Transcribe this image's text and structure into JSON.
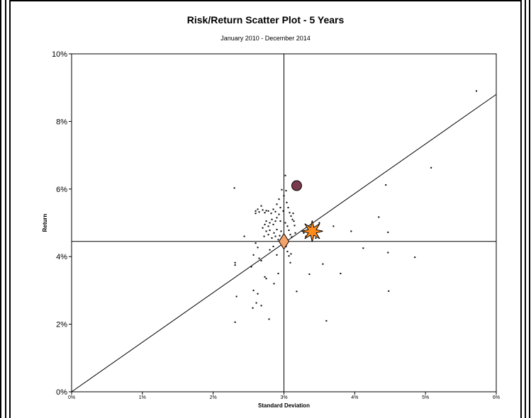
{
  "chart_data": {
    "type": "scatter",
    "title": "Risk/Return Scatter Plot - 5 Years",
    "subtitle": "January 2010 - December 2014",
    "xlabel": "Standard Deviation",
    "ylabel": "Return",
    "xlim": [
      0,
      6
    ],
    "ylim": [
      0,
      10
    ],
    "xticks": [
      "0%",
      "1%",
      "2%",
      "3%",
      "4%",
      "5%",
      "6%"
    ],
    "yticks": [
      "0%",
      "2%",
      "4%",
      "6%",
      "8%",
      "10%"
    ],
    "grid": false,
    "crosshair": {
      "x": 3.0,
      "y": 4.45
    },
    "market_line": {
      "from": [
        0,
        0
      ],
      "to": [
        6,
        8.8
      ]
    },
    "highlights": [
      {
        "marker": "circle",
        "x": 3.18,
        "y": 6.1,
        "color": "#7a3a4e"
      },
      {
        "marker": "star",
        "x": 3.4,
        "y": 4.75,
        "color": "#ff8c1a"
      },
      {
        "marker": "diamond",
        "x": 3.0,
        "y": 4.45,
        "color": "#f4a36a"
      }
    ],
    "points": [
      [
        2.3,
        6.03
      ],
      [
        2.31,
        3.82
      ],
      [
        2.31,
        3.75
      ],
      [
        2.33,
        2.82
      ],
      [
        2.31,
        2.06
      ],
      [
        2.44,
        4.6
      ],
      [
        2.54,
        3.7
      ],
      [
        2.57,
        4.05
      ],
      [
        2.57,
        3.0
      ],
      [
        2.56,
        2.48
      ],
      [
        2.61,
        2.63
      ],
      [
        2.63,
        2.9
      ],
      [
        2.68,
        2.55
      ],
      [
        2.73,
        3.4
      ],
      [
        2.75,
        3.35
      ],
      [
        2.79,
        2.15
      ],
      [
        2.6,
        4.4
      ],
      [
        2.63,
        4.27
      ],
      [
        2.65,
        3.95
      ],
      [
        2.68,
        3.88
      ],
      [
        2.6,
        5.28
      ],
      [
        2.6,
        5.35
      ],
      [
        2.63,
        5.4
      ],
      [
        2.65,
        5.32
      ],
      [
        2.68,
        5.5
      ],
      [
        2.7,
        5.38
      ],
      [
        2.73,
        5.3
      ],
      [
        2.75,
        5.36
      ],
      [
        2.78,
        5.35
      ],
      [
        2.82,
        5.28
      ],
      [
        2.85,
        5.4
      ],
      [
        2.88,
        5.33
      ],
      [
        2.7,
        4.85
      ],
      [
        2.73,
        4.95
      ],
      [
        2.75,
        5.05
      ],
      [
        2.78,
        4.9
      ],
      [
        2.8,
        5.0
      ],
      [
        2.83,
        5.1
      ],
      [
        2.85,
        4.95
      ],
      [
        2.88,
        5.05
      ],
      [
        2.9,
        5.15
      ],
      [
        2.93,
        5.25
      ],
      [
        2.95,
        5.05
      ],
      [
        2.72,
        4.6
      ],
      [
        2.75,
        4.75
      ],
      [
        2.78,
        4.65
      ],
      [
        2.8,
        4.78
      ],
      [
        2.83,
        4.55
      ],
      [
        2.86,
        4.7
      ],
      [
        2.88,
        4.6
      ],
      [
        2.9,
        4.8
      ],
      [
        2.92,
        4.5
      ],
      [
        2.94,
        4.62
      ],
      [
        2.96,
        4.75
      ],
      [
        2.98,
        4.4
      ],
      [
        2.8,
        4.2
      ],
      [
        2.85,
        4.3
      ],
      [
        2.9,
        4.05
      ],
      [
        2.92,
        3.5
      ],
      [
        2.86,
        3.2
      ],
      [
        2.9,
        5.55
      ],
      [
        2.93,
        5.7
      ],
      [
        2.95,
        5.45
      ],
      [
        2.97,
        5.98
      ],
      [
        2.99,
        5.35
      ],
      [
        3.0,
        5.8
      ],
      [
        3.02,
        6.4
      ],
      [
        3.03,
        5.95
      ],
      [
        3.04,
        5.6
      ],
      [
        3.06,
        5.45
      ],
      [
        3.08,
        5.3
      ],
      [
        3.1,
        5.2
      ],
      [
        3.12,
        5.1
      ],
      [
        3.02,
        5.0
      ],
      [
        3.05,
        4.9
      ],
      [
        3.07,
        4.78
      ],
      [
        3.09,
        4.65
      ],
      [
        3.11,
        4.58
      ],
      [
        3.03,
        4.3
      ],
      [
        3.05,
        4.15
      ],
      [
        3.07,
        4.02
      ],
      [
        3.1,
        4.08
      ],
      [
        3.09,
        3.82
      ],
      [
        3.13,
        5.28
      ],
      [
        3.14,
        5.05
      ],
      [
        3.15,
        4.92
      ],
      [
        3.16,
        4.7
      ],
      [
        3.18,
        2.97
      ],
      [
        3.28,
        4.7
      ],
      [
        3.31,
        4.6
      ],
      [
        3.36,
        3.48
      ],
      [
        3.45,
        4.55
      ],
      [
        3.5,
        5.0
      ],
      [
        3.55,
        3.78
      ],
      [
        3.6,
        2.1
      ],
      [
        3.7,
        4.9
      ],
      [
        3.8,
        3.5
      ],
      [
        3.95,
        4.75
      ],
      [
        4.12,
        4.25
      ],
      [
        4.34,
        5.17
      ],
      [
        4.44,
        6.12
      ],
      [
        4.47,
        4.72
      ],
      [
        4.47,
        4.12
      ],
      [
        4.48,
        2.98
      ],
      [
        4.85,
        3.98
      ],
      [
        5.08,
        6.63
      ],
      [
        5.72,
        8.9
      ]
    ]
  }
}
